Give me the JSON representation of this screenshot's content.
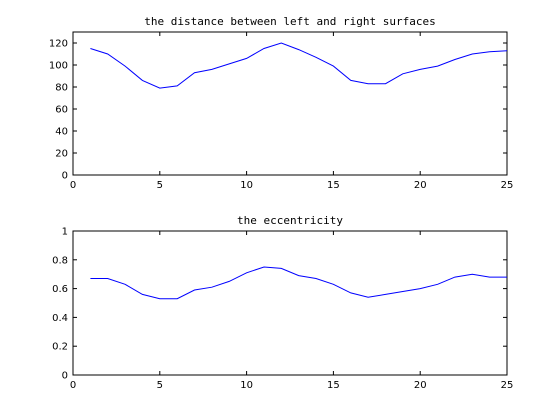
{
  "chart_data": [
    {
      "type": "line",
      "title": "the distance between left and right surfaces",
      "xlabel": "",
      "ylabel": "",
      "xlim": [
        0,
        25
      ],
      "ylim": [
        0,
        130
      ],
      "xticks": [
        0,
        5,
        10,
        15,
        20,
        25
      ],
      "yticks": [
        0,
        20,
        40,
        60,
        80,
        100,
        120
      ],
      "grid": false,
      "line_color": "#0000ff",
      "x": [
        1,
        2,
        3,
        4,
        5,
        6,
        7,
        8,
        9,
        10,
        11,
        12,
        13,
        14,
        15,
        16,
        17,
        18,
        19,
        20,
        21,
        22,
        23,
        24,
        25
      ],
      "y": [
        115,
        110,
        99,
        86,
        79,
        81,
        93,
        96,
        101,
        106,
        115,
        120,
        114,
        107,
        99,
        86,
        83,
        83,
        92,
        96,
        99,
        105,
        110,
        112,
        113
      ]
    },
    {
      "type": "line",
      "title": "the eccentricity",
      "xlabel": "",
      "ylabel": "",
      "xlim": [
        0,
        25
      ],
      "ylim": [
        0,
        1
      ],
      "xticks": [
        0,
        5,
        10,
        15,
        20,
        25
      ],
      "yticks": [
        0,
        0.2,
        0.4,
        0.6,
        0.8,
        1
      ],
      "grid": false,
      "line_color": "#0000ff",
      "x": [
        1,
        2,
        3,
        4,
        5,
        6,
        7,
        8,
        9,
        10,
        11,
        12,
        13,
        14,
        15,
        16,
        17,
        18,
        19,
        20,
        21,
        22,
        23,
        24,
        25
      ],
      "y": [
        0.67,
        0.67,
        0.63,
        0.56,
        0.53,
        0.53,
        0.59,
        0.61,
        0.65,
        0.71,
        0.75,
        0.74,
        0.69,
        0.67,
        0.63,
        0.57,
        0.54,
        0.56,
        0.58,
        0.6,
        0.63,
        0.68,
        0.7,
        0.68,
        0.68
      ]
    }
  ]
}
